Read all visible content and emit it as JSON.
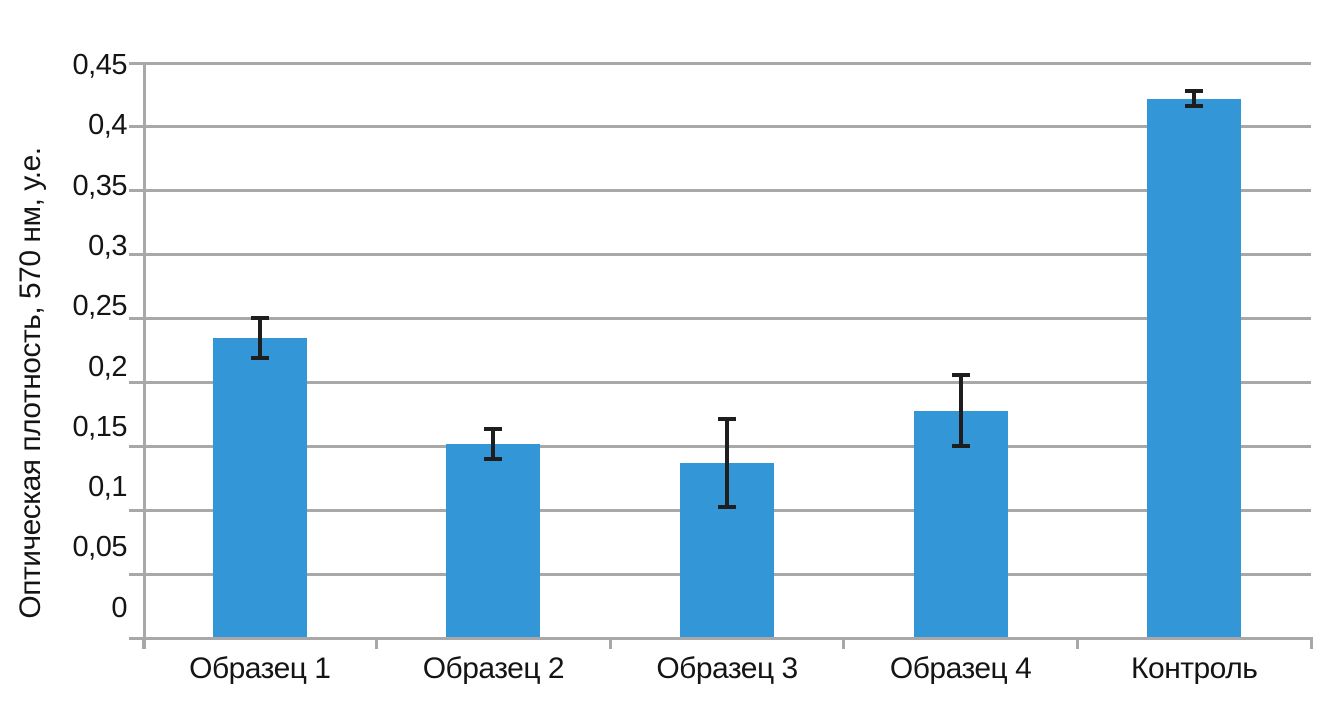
{
  "chart_data": {
    "type": "bar",
    "categories": [
      "Образец 1",
      "Образец 2",
      "Образец 3",
      "Образец 4",
      "Контроль"
    ],
    "values": [
      0.235,
      0.152,
      0.137,
      0.178,
      0.422
    ],
    "error_bars": [
      0.015,
      0.011,
      0.034,
      0.027,
      0.005
    ],
    "ylabel": "Оптическая плотность, 570 нм, у.е.",
    "ylim": [
      0,
      0.45
    ],
    "ytick_step": 0.05,
    "ytick_labels": [
      "0",
      "0,05",
      "0,1",
      "0,15",
      "0,2",
      "0,25",
      "0,3",
      "0,35",
      "0,4",
      "0,45"
    ],
    "grid": true,
    "legend_position": "none",
    "colors": {
      "bar": "#3397D7",
      "error_bar": "#1E1E1E",
      "gridline": "#A8A8A8",
      "axis": "#A8A8A8",
      "text": "#141414",
      "background": "#FFFFFF"
    }
  }
}
